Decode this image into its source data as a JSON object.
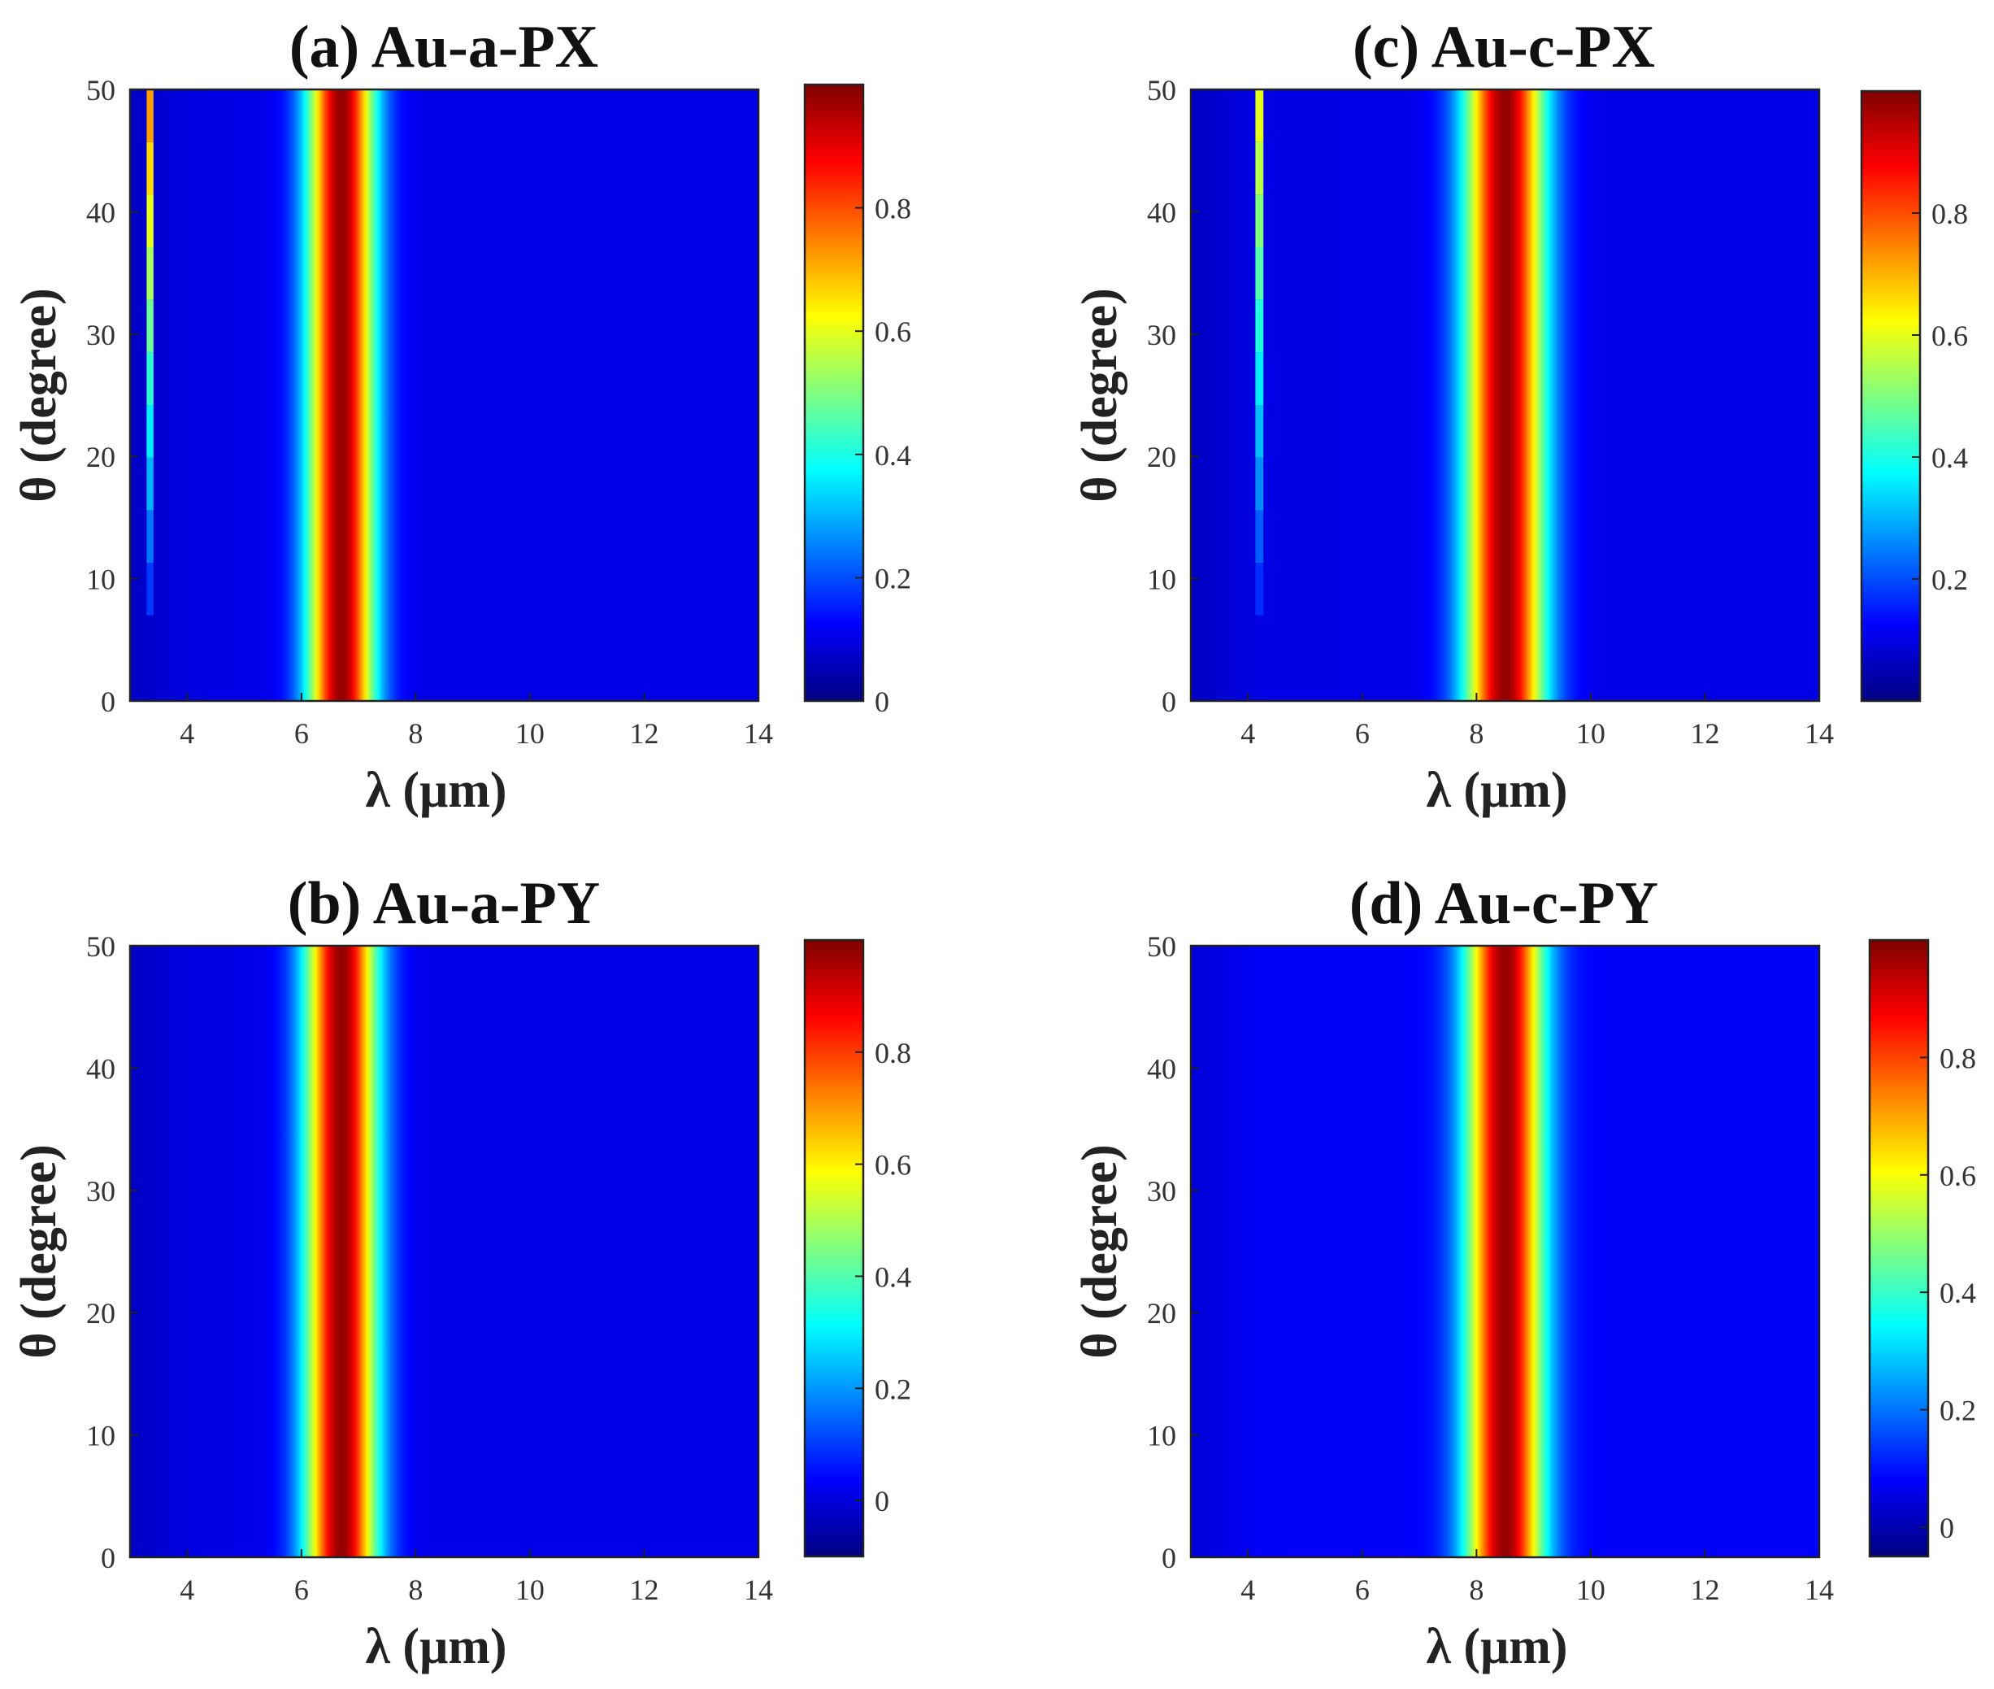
{
  "chart_data": [
    {
      "id": "a",
      "type": "heatmap",
      "title": "(a) Au-a-PX",
      "xlabel": "λ (μm)",
      "ylabel": "θ (degree)",
      "xlim": [
        3,
        14
      ],
      "ylim": [
        0,
        50
      ],
      "x_ticks": [
        4,
        6,
        8,
        10,
        12,
        14
      ],
      "y_ticks": [
        0,
        10,
        20,
        30,
        40,
        50
      ],
      "colorbar": {
        "min": 0,
        "max": 1,
        "ticks": [
          0,
          0.2,
          0.4,
          0.6,
          0.8
        ],
        "colormap": "jet"
      },
      "background_value": 0.1,
      "features": [
        {
          "center_um": 6.7,
          "width_um": 0.42,
          "peak": 0.98
        },
        {
          "center_um": 3.35,
          "width_um": 0.06,
          "peak_min": 0.12,
          "peak_max": 0.72,
          "theta_start": 7
        }
      ]
    },
    {
      "id": "c",
      "type": "heatmap",
      "title": "(c) Au-c-PX",
      "xlabel": "λ (μm)",
      "ylabel": "θ (degree)",
      "xlim": [
        3,
        14
      ],
      "ylim": [
        0,
        50
      ],
      "x_ticks": [
        4,
        6,
        8,
        10,
        12,
        14
      ],
      "y_ticks": [
        0,
        10,
        20,
        30,
        40,
        50
      ],
      "colorbar": {
        "min": 0,
        "max": 1,
        "ticks": [
          0.2,
          0.4,
          0.6,
          0.8
        ],
        "colormap": "jet"
      },
      "background_value": 0.1,
      "features": [
        {
          "center_um": 8.5,
          "width_um": 0.5,
          "peak": 0.98
        },
        {
          "center_um": 4.2,
          "width_um": 0.07,
          "peak_min": 0.12,
          "peak_max": 0.6,
          "theta_start": 7
        }
      ]
    },
    {
      "id": "b",
      "type": "heatmap",
      "title": "(b) Au-a-PY",
      "xlabel": "λ (μm)",
      "ylabel": "θ (degree)",
      "xlim": [
        3,
        14
      ],
      "ylim": [
        0,
        50
      ],
      "x_ticks": [
        4,
        6,
        8,
        10,
        12,
        14
      ],
      "y_ticks": [
        0,
        10,
        20,
        30,
        40,
        50
      ],
      "colorbar": {
        "min": -0.1,
        "max": 1,
        "ticks": [
          0,
          0.2,
          0.4,
          0.6,
          0.8
        ],
        "colormap": "jet"
      },
      "background_value": 0.1,
      "features": [
        {
          "center_um": 6.7,
          "width_um": 0.45,
          "peak": 0.98
        }
      ]
    },
    {
      "id": "d",
      "type": "heatmap",
      "title": "(d) Au-c-PY",
      "xlabel": "λ (μm)",
      "ylabel": "θ (degree)",
      "xlim": [
        3,
        14
      ],
      "ylim": [
        0,
        50
      ],
      "x_ticks": [
        4,
        6,
        8,
        10,
        12,
        14
      ],
      "y_ticks": [
        0,
        10,
        20,
        30,
        40,
        50
      ],
      "colorbar": {
        "min": -0.05,
        "max": 1,
        "ticks": [
          0,
          0.2,
          0.4,
          0.6,
          0.8
        ],
        "colormap": "jet"
      },
      "background_value": 0.12,
      "features": [
        {
          "center_um": 8.5,
          "width_um": 0.48,
          "peak": 0.98
        }
      ]
    }
  ]
}
